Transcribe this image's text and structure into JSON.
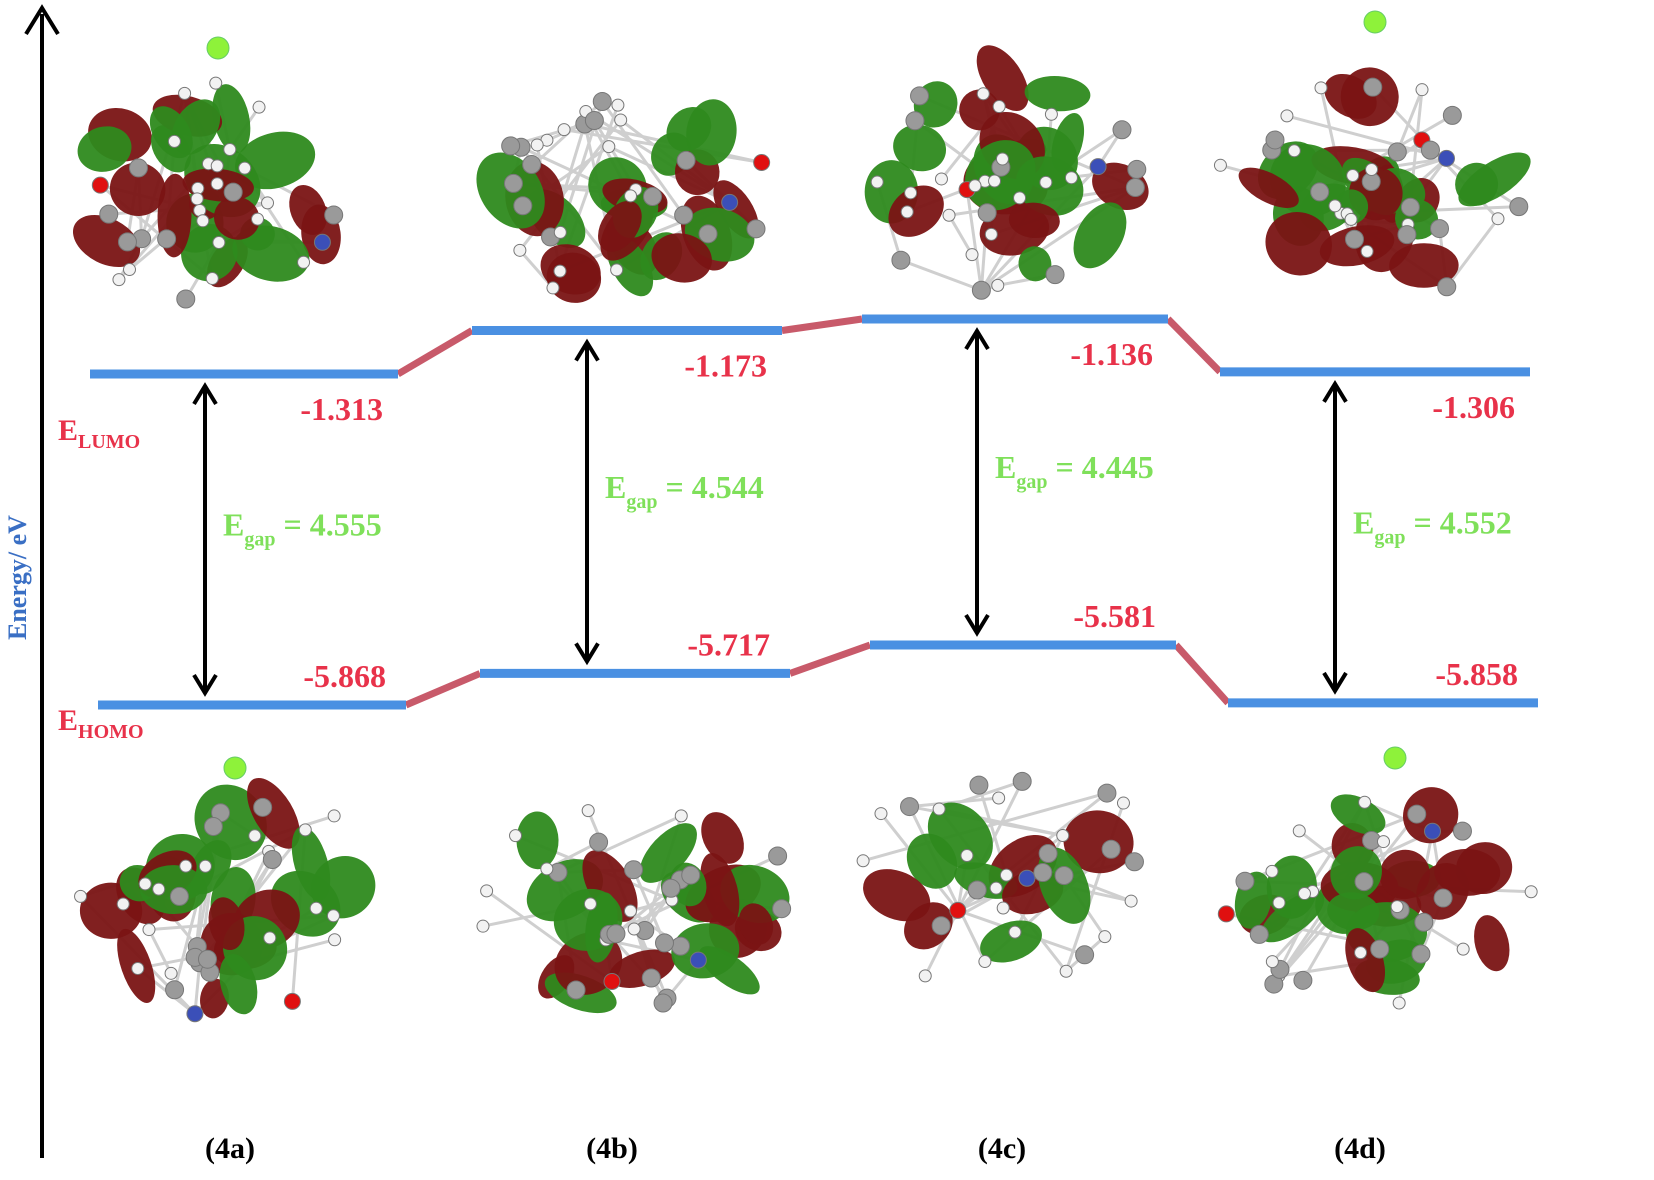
{
  "axis": {
    "label": "Energy/ eV"
  },
  "labels": {
    "lumo_prefix": "E",
    "lumo_sub": "LUMO",
    "homo_prefix": "E",
    "homo_sub": "HOMO",
    "gap_prefix": "E",
    "gap_sub": "gap"
  },
  "colors": {
    "level_line": "#4a90e2",
    "connector": "#c85a6a",
    "value_text": "#e8324a",
    "gap_text": "#7fe05a",
    "axis_label": "#3a6fc4",
    "arrow": "#000000",
    "lobe_red": "#7a1414",
    "lobe_green": "#2e8a1e",
    "atom_carbon": "#9a9a9a",
    "atom_hydrogen": "#f2f2f2",
    "atom_nitrogen": "#3b4fb8",
    "atom_oxygen": "#e01010",
    "atom_chlorine": "#8ef23a"
  },
  "compounds": [
    {
      "id": "4a",
      "label": "(4a)",
      "lumo": -1.313,
      "homo": -5.868,
      "gap": 4.555,
      "lumo_text": "-1.313",
      "homo_text": "-5.868",
      "gap_text": "= 4.555"
    },
    {
      "id": "4b",
      "label": "(4b)",
      "lumo": -1.173,
      "homo": -5.717,
      "gap": 4.544,
      "lumo_text": "-1.173",
      "homo_text": "-5.717",
      "gap_text": "= 4.544"
    },
    {
      "id": "4c",
      "label": "(4c)",
      "lumo": -1.136,
      "homo": -5.581,
      "gap": 4.445,
      "lumo_text": "-1.136",
      "homo_text": "-5.581",
      "gap_text": "= 4.445"
    },
    {
      "id": "4d",
      "label": "(4d)",
      "lumo": -1.306,
      "homo": -5.858,
      "gap": 4.552,
      "lumo_text": "-1.306",
      "homo_text": "-5.858",
      "gap_text": "= 4.552"
    }
  ],
  "orbital_images": [
    {
      "compound": "4a",
      "orbital": "LUMO",
      "icon": "molecular-orbital-icon"
    },
    {
      "compound": "4b",
      "orbital": "LUMO",
      "icon": "molecular-orbital-icon"
    },
    {
      "compound": "4c",
      "orbital": "LUMO",
      "icon": "molecular-orbital-icon"
    },
    {
      "compound": "4d",
      "orbital": "LUMO",
      "icon": "molecular-orbital-icon"
    },
    {
      "compound": "4a",
      "orbital": "HOMO",
      "icon": "molecular-orbital-icon"
    },
    {
      "compound": "4b",
      "orbital": "HOMO",
      "icon": "molecular-orbital-icon"
    },
    {
      "compound": "4c",
      "orbital": "HOMO",
      "icon": "molecular-orbital-icon"
    },
    {
      "compound": "4d",
      "orbital": "HOMO",
      "icon": "molecular-orbital-icon"
    }
  ]
}
